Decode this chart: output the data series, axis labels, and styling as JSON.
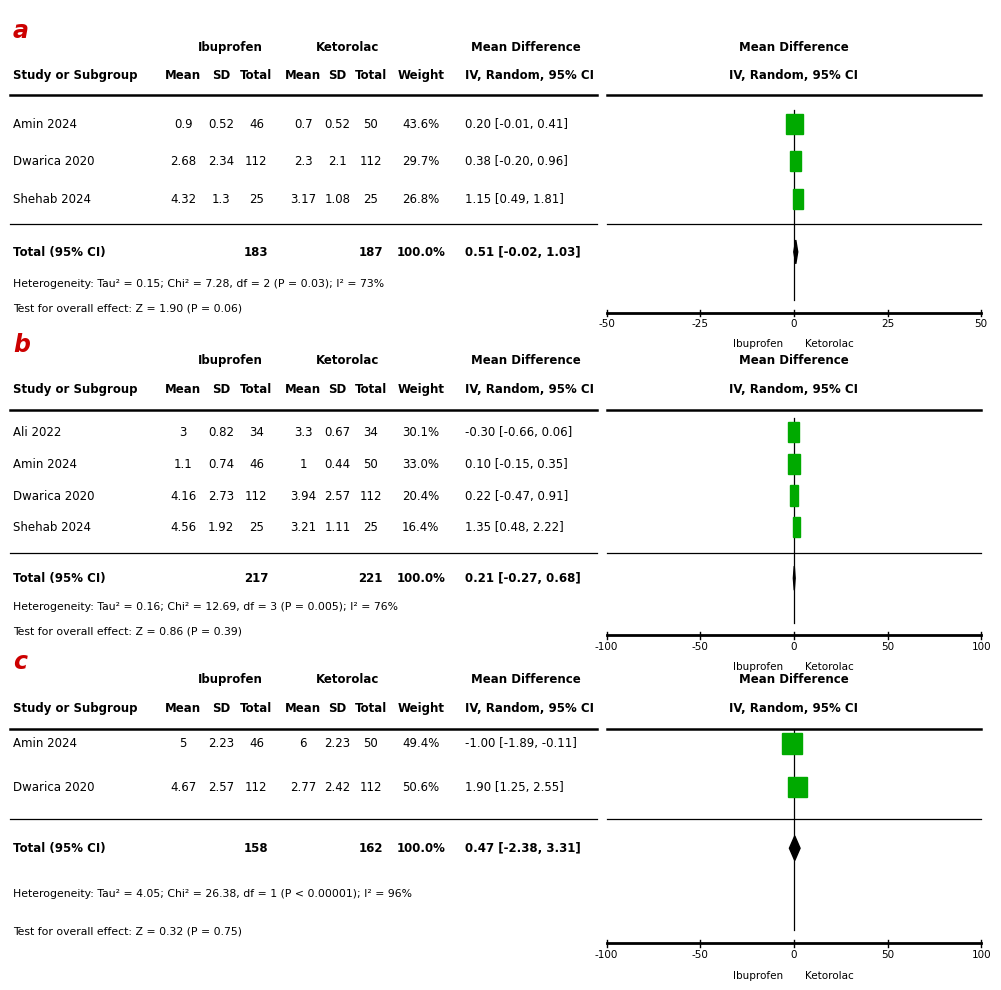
{
  "panel_a": {
    "label": "a",
    "studies": [
      {
        "name": "Amin 2024",
        "m1": "0.9",
        "sd1": "0.52",
        "n1": "46",
        "m2": "0.7",
        "sd2": "0.52",
        "n2": "50",
        "weight": "43.6%",
        "md": 0.2,
        "ci_lo": -0.01,
        "ci_hi": 0.41,
        "ci_str": "0.20 [-0.01, 0.41]"
      },
      {
        "name": "Dwarica 2020",
        "m1": "2.68",
        "sd1": "2.34",
        "n1": "112",
        "m2": "2.3",
        "sd2": "2.1",
        "n2": "112",
        "weight": "29.7%",
        "md": 0.38,
        "ci_lo": -0.2,
        "ci_hi": 0.96,
        "ci_str": "0.38 [-0.20, 0.96]"
      },
      {
        "name": "Shehab 2024",
        "m1": "4.32",
        "sd1": "1.3",
        "n1": "25",
        "m2": "3.17",
        "sd2": "1.08",
        "n2": "25",
        "weight": "26.8%",
        "md": 1.15,
        "ci_lo": 0.49,
        "ci_hi": 1.81,
        "ci_str": "1.15 [0.49, 1.81]"
      }
    ],
    "total_n1": "183",
    "total_n2": "187",
    "total_weight": "100.0%",
    "total_md": 0.51,
    "total_ci_lo": -0.02,
    "total_ci_hi": 1.03,
    "total_ci_str": "0.51 [-0.02, 1.03]",
    "het_text": "Heterogeneity: Tau² = 0.15; Chi² = 7.28, df = 2 (P = 0.03); I² = 73%",
    "test_text": "Test for overall effect: Z = 1.90 (P = 0.06)",
    "xlim": [
      -50,
      50
    ],
    "xticks": [
      -50,
      -25,
      0,
      25,
      50
    ],
    "xlabel_left": "Ibuprofen",
    "xlabel_right": "Ketorolac"
  },
  "panel_b": {
    "label": "b",
    "studies": [
      {
        "name": "Ali 2022",
        "m1": "3",
        "sd1": "0.82",
        "n1": "34",
        "m2": "3.3",
        "sd2": "0.67",
        "n2": "34",
        "weight": "30.1%",
        "md": -0.3,
        "ci_lo": -0.66,
        "ci_hi": 0.06,
        "ci_str": "-0.30 [-0.66, 0.06]"
      },
      {
        "name": "Amin 2024",
        "m1": "1.1",
        "sd1": "0.74",
        "n1": "46",
        "m2": "1",
        "sd2": "0.44",
        "n2": "50",
        "weight": "33.0%",
        "md": 0.1,
        "ci_lo": -0.15,
        "ci_hi": 0.35,
        "ci_str": "0.10 [-0.15, 0.35]"
      },
      {
        "name": "Dwarica 2020",
        "m1": "4.16",
        "sd1": "2.73",
        "n1": "112",
        "m2": "3.94",
        "sd2": "2.57",
        "n2": "112",
        "weight": "20.4%",
        "md": 0.22,
        "ci_lo": -0.47,
        "ci_hi": 0.91,
        "ci_str": "0.22 [-0.47, 0.91]"
      },
      {
        "name": "Shehab 2024",
        "m1": "4.56",
        "sd1": "1.92",
        "n1": "25",
        "m2": "3.21",
        "sd2": "1.11",
        "n2": "25",
        "weight": "16.4%",
        "md": 1.35,
        "ci_lo": 0.48,
        "ci_hi": 2.22,
        "ci_str": "1.35 [0.48, 2.22]"
      }
    ],
    "total_n1": "217",
    "total_n2": "221",
    "total_weight": "100.0%",
    "total_md": 0.21,
    "total_ci_lo": -0.27,
    "total_ci_hi": 0.68,
    "total_ci_str": "0.21 [-0.27, 0.68]",
    "het_text": "Heterogeneity: Tau² = 0.16; Chi² = 12.69, df = 3 (P = 0.005); I² = 76%",
    "test_text": "Test for overall effect: Z = 0.86 (P = 0.39)",
    "xlim": [
      -100,
      100
    ],
    "xticks": [
      -100,
      -50,
      0,
      50,
      100
    ],
    "xlabel_left": "Ibuprofen",
    "xlabel_right": "Ketorolac"
  },
  "panel_c": {
    "label": "c",
    "studies": [
      {
        "name": "Amin 2024",
        "m1": "5",
        "sd1": "2.23",
        "n1": "46",
        "m2": "6",
        "sd2": "2.23",
        "n2": "50",
        "weight": "49.4%",
        "md": -1.0,
        "ci_lo": -1.89,
        "ci_hi": -0.11,
        "ci_str": "-1.00 [-1.89, -0.11]"
      },
      {
        "name": "Dwarica 2020",
        "m1": "4.67",
        "sd1": "2.57",
        "n1": "112",
        "m2": "2.77",
        "sd2": "2.42",
        "n2": "112",
        "weight": "50.6%",
        "md": 1.9,
        "ci_lo": 1.25,
        "ci_hi": 2.55,
        "ci_str": "1.90 [1.25, 2.55]"
      }
    ],
    "total_n1": "158",
    "total_n2": "162",
    "total_weight": "100.0%",
    "total_md": 0.47,
    "total_ci_lo": -2.38,
    "total_ci_hi": 3.31,
    "total_ci_str": "0.47 [-2.38, 3.31]",
    "het_text": "Heterogeneity: Tau² = 4.05; Chi² = 26.38, df = 1 (P < 0.00001); I² = 96%",
    "test_text": "Test for overall effect: Z = 0.32 (P = 0.75)",
    "xlim": [
      -100,
      100
    ],
    "xticks": [
      -100,
      -50,
      0,
      50,
      100
    ],
    "xlabel_left": "Ibuprofen",
    "xlabel_right": "Ketorolac"
  },
  "colors": {
    "green": "#00AA00",
    "black": "#000000",
    "diamond": "#000000",
    "label_red": "#CC0000"
  }
}
